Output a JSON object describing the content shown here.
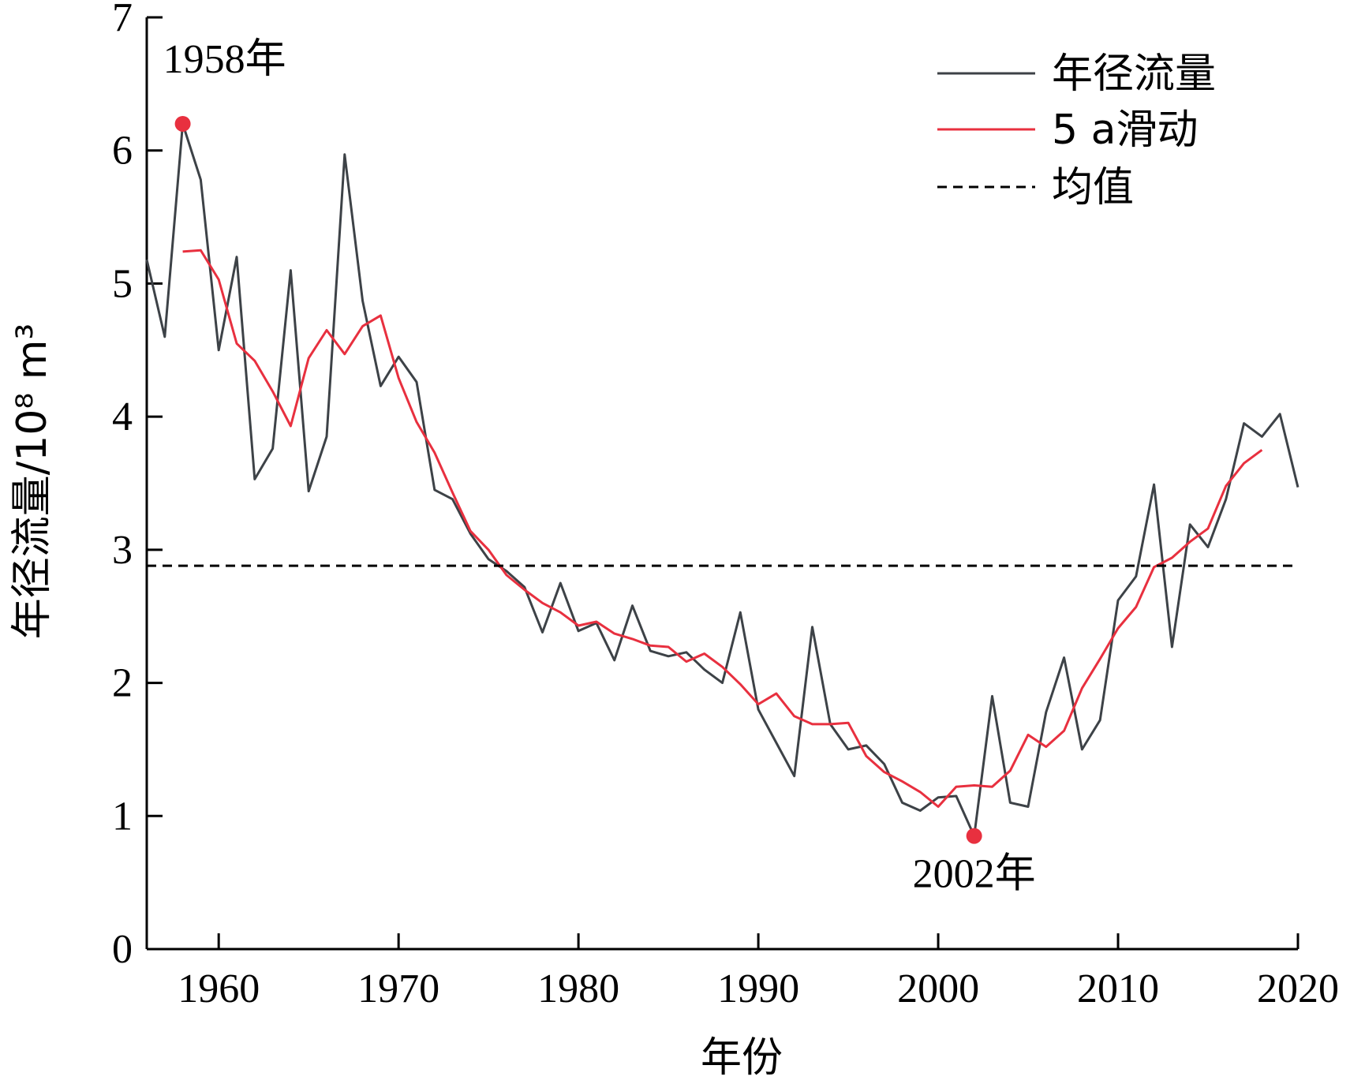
{
  "chart_data": {
    "type": "line",
    "xlabel": "年份",
    "ylabel": "年径流量/10⁸ m³",
    "xlim": [
      1956,
      2020
    ],
    "ylim": [
      0,
      7
    ],
    "xticks": [
      "1960",
      "1970",
      "1980",
      "1990",
      "2000",
      "2010",
      "2020"
    ],
    "yticks": [
      "0",
      "1",
      "2",
      "3",
      "4",
      "5",
      "6",
      "7"
    ],
    "legend": {
      "position": "top-right"
    },
    "series": [
      {
        "name": "年径流量",
        "color": "#3d4247",
        "style": "solid",
        "x": [
          1956,
          1957,
          1958,
          1959,
          1960,
          1961,
          1962,
          1963,
          1964,
          1965,
          1966,
          1967,
          1968,
          1969,
          1970,
          1971,
          1972,
          1973,
          1974,
          1975,
          1976,
          1977,
          1978,
          1979,
          1980,
          1981,
          1982,
          1983,
          1984,
          1985,
          1986,
          1987,
          1988,
          1989,
          1990,
          1991,
          1992,
          1993,
          1994,
          1995,
          1996,
          1997,
          1998,
          1999,
          2000,
          2001,
          2002,
          2003,
          2004,
          2005,
          2006,
          2007,
          2008,
          2009,
          2010,
          2011,
          2012,
          2013,
          2014,
          2015,
          2016,
          2017,
          2018,
          2019,
          2020
        ],
        "values": [
          5.18,
          4.6,
          6.2,
          5.78,
          4.5,
          5.2,
          3.53,
          3.76,
          5.1,
          3.44,
          3.85,
          5.97,
          4.87,
          4.23,
          4.45,
          4.26,
          3.45,
          3.38,
          3.12,
          2.93,
          2.84,
          2.72,
          2.38,
          2.75,
          2.39,
          2.45,
          2.17,
          2.58,
          2.24,
          2.2,
          2.23,
          2.1,
          2.0,
          2.53,
          1.8,
          1.55,
          1.3,
          2.42,
          1.69,
          1.5,
          1.53,
          1.39,
          1.1,
          1.04,
          1.14,
          1.15,
          0.85,
          1.9,
          1.1,
          1.07,
          1.78,
          2.19,
          1.5,
          1.72,
          2.62,
          2.8,
          3.49,
          2.27,
          3.19,
          3.02,
          3.38,
          3.95,
          3.85,
          4.02,
          3.47
        ]
      },
      {
        "name": "5 a滑动",
        "color": "#e8303f",
        "style": "solid",
        "x": [
          1958,
          1959,
          1960,
          1961,
          1962,
          1963,
          1964,
          1965,
          1966,
          1967,
          1968,
          1969,
          1970,
          1971,
          1972,
          1973,
          1974,
          1975,
          1976,
          1977,
          1978,
          1979,
          1980,
          1981,
          1982,
          1983,
          1984,
          1985,
          1986,
          1987,
          1988,
          1989,
          1990,
          1991,
          1992,
          1993,
          1994,
          1995,
          1996,
          1997,
          1998,
          1999,
          2000,
          2001,
          2002,
          2003,
          2004,
          2005,
          2006,
          2007,
          2008,
          2009,
          2010,
          2011,
          2012,
          2013,
          2014,
          2015,
          2016,
          2017,
          2018
        ],
        "values": [
          5.24,
          5.25,
          5.03,
          4.55,
          4.42,
          4.19,
          3.93,
          4.44,
          4.65,
          4.47,
          4.68,
          4.76,
          4.29,
          3.96,
          3.73,
          3.43,
          3.14,
          3.0,
          2.81,
          2.7,
          2.6,
          2.53,
          2.43,
          2.46,
          2.37,
          2.33,
          2.28,
          2.27,
          2.16,
          2.22,
          2.12,
          1.99,
          1.84,
          1.92,
          1.75,
          1.69,
          1.69,
          1.7,
          1.45,
          1.33,
          1.26,
          1.18,
          1.07,
          1.22,
          1.23,
          1.22,
          1.34,
          1.61,
          1.52,
          1.64,
          1.96,
          2.18,
          2.41,
          2.57,
          2.87,
          2.94,
          3.06,
          3.16,
          3.48,
          3.65,
          3.75
        ]
      },
      {
        "name": "均值",
        "color": "#000000",
        "style": "dashed",
        "x": [
          1956,
          2020
        ],
        "values": [
          2.88,
          2.88
        ]
      }
    ],
    "annotations": [
      {
        "label": "1958年",
        "x": 1958,
        "y": 6.2,
        "marker": "#e8303f"
      },
      {
        "label": "2002年",
        "x": 2002,
        "y": 0.85,
        "marker": "#e8303f"
      }
    ]
  }
}
